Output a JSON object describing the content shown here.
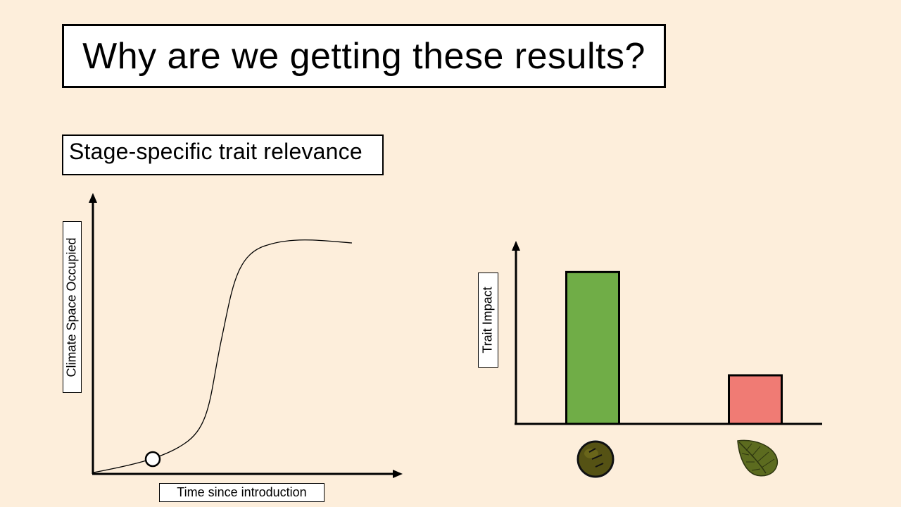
{
  "slide": {
    "title": "Why are we getting these results?",
    "subtitle": "Stage-specific trait relevance"
  },
  "left_chart": {
    "ylabel": "Climate Space Occupied",
    "xlabel": "Time since introduction",
    "marker_note": "open circle on early part of curve"
  },
  "right_chart": {
    "ylabel": "Trait Impact"
  },
  "colors": {
    "background": "#fdeedb",
    "seed_bar": "#70ad47",
    "leaf_bar": "#f07b74",
    "seed_icon": "#5a5a14",
    "leaf_icon": "#5c6b1f"
  },
  "icons": {
    "seed": "seed-icon",
    "leaf": "leaf-icon"
  },
  "chart_data": [
    {
      "type": "line",
      "xlabel": "Time since introduction",
      "ylabel": "Climate Space Occupied",
      "shape": "sigmoid",
      "grid": false
    },
    {
      "type": "bar",
      "ylabel": "Trait Impact",
      "categories": [
        "seed",
        "leaf"
      ],
      "values": [
        1.0,
        0.32
      ],
      "ylim": [
        0,
        1.15
      ],
      "grid": false
    }
  ]
}
